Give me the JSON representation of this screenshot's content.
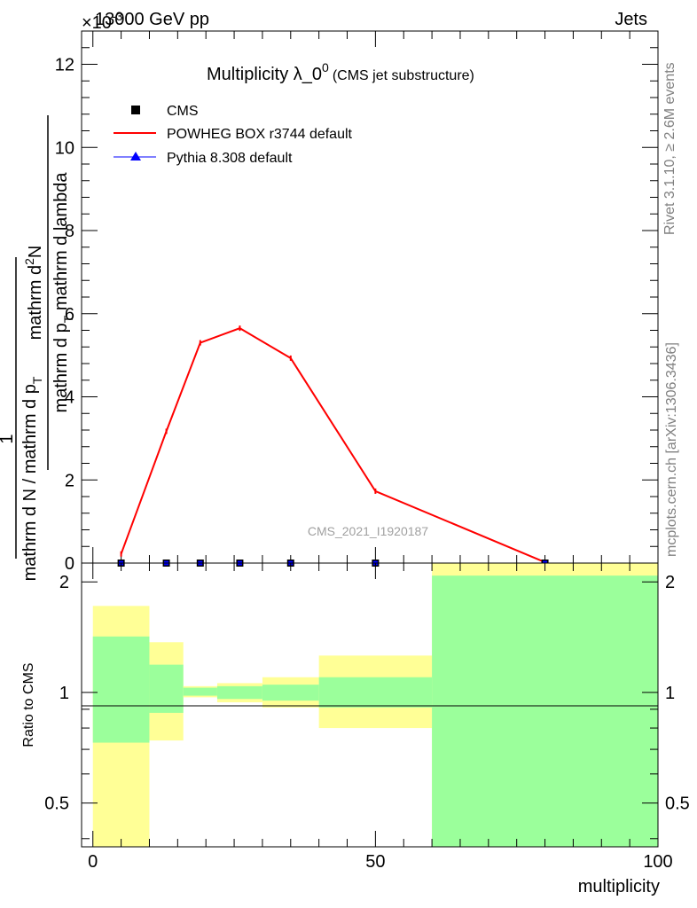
{
  "header": {
    "energy": "13000 GeV pp",
    "category": "Jets",
    "exponent": "×10",
    "exponent_power": "-3"
  },
  "side_labels": {
    "rivet": "Rivet 3.1.10, ≥ 2.6M events",
    "mcplots": "mcplots.cern.ch [arXiv:1306.3436]"
  },
  "watermark": "CMS_2021_I1920187",
  "chart_data": [
    {
      "type": "line",
      "title": "Multiplicity λ_0",
      "title_sup": "0",
      "subtitle": "(CMS jet substructure)",
      "ylabel_numerator": "1",
      "ylabel_numerator_den": "mathrm d N / mathrm d p",
      "ylabel_numerator_sub": "T",
      "ylabel_frac_top": "mathrm d",
      "ylabel_frac_sup": "2",
      "ylabel_frac_top_tail": "N",
      "ylabel_frac_bottom": "mathrm d p",
      "ylabel_frac_bottom_sub": "T",
      "ylabel_frac_bottom_tail": " mathrm d lambda",
      "xlim": [
        -2,
        100
      ],
      "ylim": [
        0,
        12.8
      ],
      "yticks": [
        0,
        2,
        4,
        6,
        8,
        10,
        12
      ],
      "grid": false,
      "legend_position": "top-left",
      "series": [
        {
          "name": "CMS",
          "marker": "square",
          "color": "#000000",
          "x": [
            5,
            13,
            19,
            26,
            35,
            50,
            80
          ],
          "y": [
            0,
            0,
            0,
            0,
            0,
            0,
            0
          ]
        },
        {
          "name": "POWHEG BOX r3744 default",
          "marker": "none",
          "color": "#ff0000",
          "x": [
            5,
            13,
            19,
            26,
            35,
            50,
            80
          ],
          "y": [
            0.22,
            3.17,
            5.3,
            5.65,
            4.93,
            1.73,
            0.02
          ]
        },
        {
          "name": "Pythia 8.308 default",
          "marker": "triangle",
          "color": "#0000ff",
          "x": [],
          "y": []
        }
      ]
    },
    {
      "type": "area",
      "ylabel": "Ratio to CMS",
      "xlabel": "multiplicity",
      "xlim": [
        -2,
        100
      ],
      "ylim": [
        0.38,
        2.25
      ],
      "yscale": "log",
      "yticks": [
        0.5,
        1,
        2
      ],
      "xticks": [
        0,
        50,
        100
      ],
      "reference_line": 1,
      "bands": [
        {
          "x0": 0,
          "x1": 10,
          "stat": [
            0.73,
            1.42
          ],
          "total": [
            0.38,
            1.72
          ]
        },
        {
          "x0": 10,
          "x1": 16,
          "stat": [
            0.88,
            1.19
          ],
          "total": [
            0.74,
            1.37
          ]
        },
        {
          "x0": 16,
          "x1": 22,
          "stat": [
            0.98,
            1.03
          ],
          "total": [
            0.97,
            1.04
          ]
        },
        {
          "x0": 22,
          "x1": 30,
          "stat": [
            0.96,
            1.04
          ],
          "total": [
            0.94,
            1.06
          ]
        },
        {
          "x0": 30,
          "x1": 40,
          "stat": [
            0.95,
            1.05
          ],
          "total": [
            0.91,
            1.1
          ]
        },
        {
          "x0": 40,
          "x1": 60,
          "stat": [
            0.91,
            1.1
          ],
          "total": [
            0.8,
            1.26
          ]
        },
        {
          "x0": 60,
          "x1": 100,
          "stat": [
            0.38,
            2.08
          ],
          "total": [
            0.38,
            2.25
          ]
        }
      ],
      "colors": {
        "stat": "#9bff9b",
        "total": "#ffff96"
      }
    }
  ]
}
